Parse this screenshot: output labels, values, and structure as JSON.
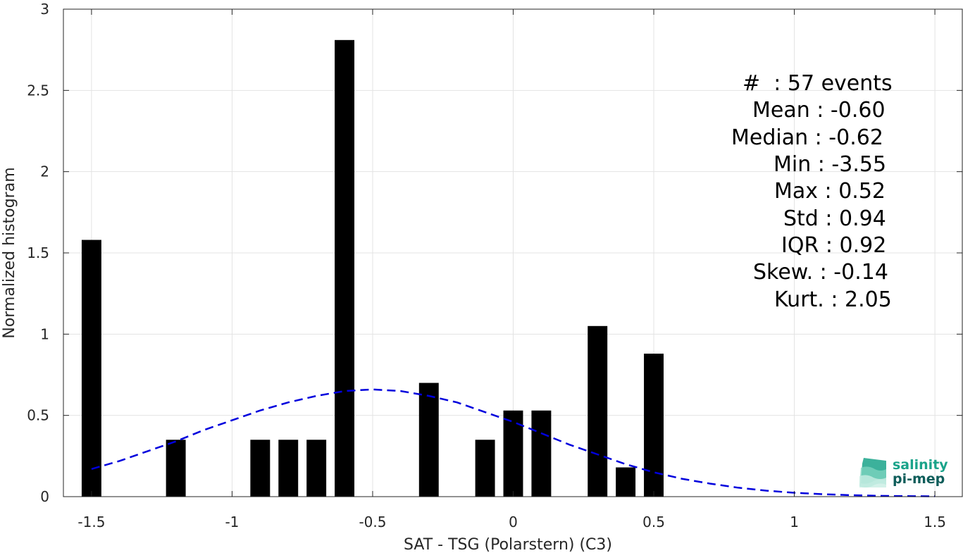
{
  "chart_data": {
    "type": "bar",
    "xlabel": "SAT - TSG (Polarstern) (C3)",
    "ylabel": "Normalized histogram",
    "xlim": [
      -1.6,
      1.6
    ],
    "ylim": [
      0,
      3
    ],
    "xticks": [
      -1.5,
      -1,
      -0.5,
      0,
      0.5,
      1,
      1.5
    ],
    "xtick_labels": [
      "-1.5",
      "-1",
      "-0.5",
      "0",
      "0.5",
      "1",
      "1.5"
    ],
    "yticks": [
      0,
      0.5,
      1,
      1.5,
      2,
      2.5,
      3
    ],
    "ytick_labels": [
      "0",
      "0.5",
      "1",
      "1.5",
      "2",
      "2.5",
      "3"
    ],
    "grid": true,
    "bar_width": 0.07,
    "bars": [
      {
        "x": -1.5,
        "value": 1.58
      },
      {
        "x": -1.2,
        "value": 0.35
      },
      {
        "x": -0.9,
        "value": 0.35
      },
      {
        "x": -0.8,
        "value": 0.35
      },
      {
        "x": -0.7,
        "value": 0.35
      },
      {
        "x": -0.6,
        "value": 2.81
      },
      {
        "x": -0.3,
        "value": 0.7
      },
      {
        "x": -0.1,
        "value": 0.35
      },
      {
        "x": 0.0,
        "value": 0.53
      },
      {
        "x": 0.1,
        "value": 0.53
      },
      {
        "x": 0.3,
        "value": 1.05
      },
      {
        "x": 0.4,
        "value": 0.18
      },
      {
        "x": 0.5,
        "value": 0.88
      }
    ],
    "fit_curve": {
      "style": "dashed",
      "color": "#0000dd",
      "x": [
        -1.5,
        -1.4,
        -1.3,
        -1.2,
        -1.1,
        -1.0,
        -0.9,
        -0.8,
        -0.7,
        -0.6,
        -0.5,
        -0.4,
        -0.3,
        -0.2,
        -0.1,
        0.0,
        0.1,
        0.2,
        0.3,
        0.4,
        0.5,
        0.6,
        0.7,
        0.8,
        0.9,
        1.0,
        1.1,
        1.2,
        1.3,
        1.4,
        1.5
      ],
      "y": [
        0.17,
        0.22,
        0.28,
        0.34,
        0.41,
        0.47,
        0.53,
        0.58,
        0.62,
        0.65,
        0.66,
        0.65,
        0.62,
        0.58,
        0.52,
        0.46,
        0.39,
        0.32,
        0.26,
        0.2,
        0.15,
        0.11,
        0.08,
        0.055,
        0.037,
        0.024,
        0.015,
        0.009,
        0.005,
        0.003,
        0.002
      ]
    },
    "annotations": [
      "#  : 57 events",
      "Mean : -0.60",
      "Median : -0.62",
      "Min : -3.55",
      "Max : 0.52",
      "Std : 0.94",
      "IQR : 0.92",
      "Skew. : -0.14",
      "Kurt. : 2.05"
    ]
  },
  "logo": {
    "line1": "salinity",
    "line2": "pi-mep",
    "color1": "#1aa38a",
    "color2": "#0e5d5a"
  },
  "colors": {
    "bars": "#000000",
    "grid": "#e3e3e3",
    "axis": "#262626"
  }
}
